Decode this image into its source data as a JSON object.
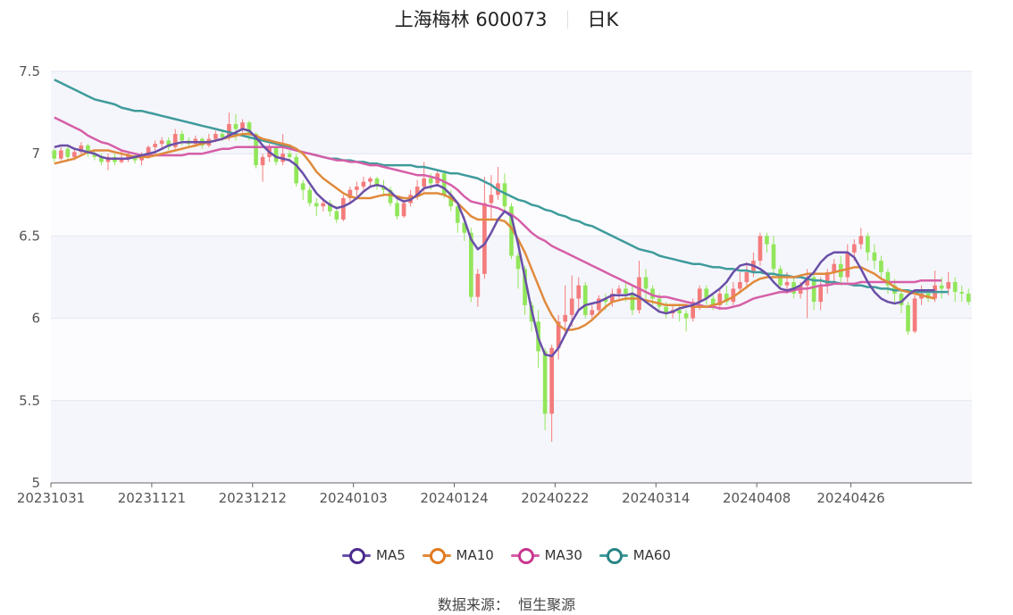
{
  "title": {
    "name": "上海梅林 600073",
    "period": "日K"
  },
  "source": {
    "label": "数据来源：",
    "value": "恒生聚源"
  },
  "colors": {
    "up": "#f47c7c",
    "down": "#91e65a",
    "MA5": "#6a4fa8",
    "MA10": "#e08a3c",
    "MA30": "#d65fa8",
    "MA60": "#3f9b9b"
  },
  "chart_data": {
    "type": "candlestick",
    "ylim": [
      5,
      7.5
    ],
    "y_ticks": [
      "5",
      "5.5",
      "6",
      "6.5",
      "7",
      "7.5"
    ],
    "x_ticks": [
      "20231031",
      "20231121",
      "20231212",
      "20240103",
      "20240124",
      "20240222",
      "20240314",
      "20240408",
      "20240426"
    ],
    "x_tick_positions": [
      0,
      15,
      30,
      45,
      60,
      75,
      90,
      105,
      119
    ],
    "grid": true,
    "legend": {
      "position": "bottom",
      "entries": [
        "MA5",
        "MA10",
        "MA30",
        "MA60"
      ]
    },
    "candles": [
      [
        7.02,
        6.97,
        6.95,
        7.03
      ],
      [
        6.97,
        7.02,
        6.96,
        7.04
      ],
      [
        7.03,
        6.98,
        6.96,
        7.05
      ],
      [
        6.98,
        7.01,
        6.96,
        7.03
      ],
      [
        7.01,
        7.05,
        7.0,
        7.07
      ],
      [
        7.05,
        7.0,
        6.98,
        7.06
      ],
      [
        7.0,
        6.98,
        6.96,
        7.02
      ],
      [
        6.98,
        6.95,
        6.93,
        7.0
      ],
      [
        6.95,
        6.98,
        6.9,
        7.0
      ],
      [
        6.98,
        6.95,
        6.93,
        7.0
      ],
      [
        6.95,
        6.97,
        6.94,
        7.02
      ],
      [
        6.97,
        6.99,
        6.95,
        7.01
      ],
      [
        6.99,
        6.96,
        6.94,
        7.0
      ],
      [
        6.96,
        6.99,
        6.93,
        7.01
      ],
      [
        6.99,
        7.04,
        6.97,
        7.05
      ],
      [
        7.04,
        7.06,
        7.0,
        7.08
      ],
      [
        7.06,
        7.08,
        7.03,
        7.1
      ],
      [
        7.08,
        7.04,
        7.02,
        7.1
      ],
      [
        7.04,
        7.12,
        7.03,
        7.15
      ],
      [
        7.12,
        7.08,
        7.05,
        7.14
      ],
      [
        7.08,
        7.06,
        7.04,
        7.1
      ],
      [
        7.06,
        7.09,
        7.04,
        7.11
      ],
      [
        7.09,
        7.05,
        7.03,
        7.1
      ],
      [
        7.05,
        7.09,
        7.04,
        7.12
      ],
      [
        7.09,
        7.12,
        7.07,
        7.14
      ],
      [
        7.12,
        7.1,
        7.08,
        7.15
      ],
      [
        7.1,
        7.18,
        7.08,
        7.25
      ],
      [
        7.18,
        7.15,
        7.08,
        7.24
      ],
      [
        7.15,
        7.19,
        7.13,
        7.21
      ],
      [
        7.19,
        7.12,
        7.08,
        7.2
      ],
      [
        7.12,
        6.93,
        6.91,
        7.13
      ],
      [
        6.93,
        6.98,
        6.83,
        7.0
      ],
      [
        6.98,
        7.04,
        6.95,
        7.06
      ],
      [
        7.04,
        6.95,
        6.93,
        7.05
      ],
      [
        6.95,
        7.0,
        6.93,
        7.12
      ],
      [
        7.0,
        6.98,
        6.96,
        7.02
      ],
      [
        6.98,
        6.82,
        6.8,
        7.0
      ],
      [
        6.82,
        6.78,
        6.72,
        6.84
      ],
      [
        6.78,
        6.7,
        6.68,
        6.8
      ],
      [
        6.7,
        6.68,
        6.62,
        6.73
      ],
      [
        6.68,
        6.7,
        6.65,
        6.73
      ],
      [
        6.7,
        6.65,
        6.62,
        6.72
      ],
      [
        6.65,
        6.6,
        6.58,
        6.68
      ],
      [
        6.6,
        6.73,
        6.59,
        6.75
      ],
      [
        6.73,
        6.78,
        6.7,
        6.8
      ],
      [
        6.78,
        6.8,
        6.74,
        6.83
      ],
      [
        6.8,
        6.83,
        6.78,
        6.86
      ],
      [
        6.83,
        6.85,
        6.8,
        6.86
      ],
      [
        6.85,
        6.8,
        6.78,
        6.86
      ],
      [
        6.8,
        6.78,
        6.74,
        6.84
      ],
      [
        6.78,
        6.7,
        6.68,
        6.8
      ],
      [
        6.7,
        6.62,
        6.6,
        6.72
      ],
      [
        6.62,
        6.7,
        6.61,
        6.72
      ],
      [
        6.7,
        6.75,
        6.68,
        6.78
      ],
      [
        6.75,
        6.8,
        6.72,
        6.84
      ],
      [
        6.8,
        6.85,
        6.77,
        6.95
      ],
      [
        6.85,
        6.82,
        6.78,
        6.88
      ],
      [
        6.82,
        6.88,
        6.8,
        6.9
      ],
      [
        6.88,
        6.75,
        6.73,
        6.9
      ],
      [
        6.75,
        6.68,
        6.65,
        6.78
      ],
      [
        6.68,
        6.58,
        6.52,
        6.7
      ],
      [
        6.58,
        6.52,
        6.47,
        6.62
      ],
      [
        6.52,
        6.13,
        6.1,
        6.55
      ],
      [
        6.13,
        6.27,
        6.07,
        6.3
      ],
      [
        6.27,
        6.7,
        6.24,
        6.86
      ],
      [
        6.7,
        6.75,
        6.6,
        6.87
      ],
      [
        6.75,
        6.82,
        6.72,
        6.92
      ],
      [
        6.82,
        6.68,
        6.65,
        6.88
      ],
      [
        6.68,
        6.38,
        6.36,
        6.7
      ],
      [
        6.38,
        6.3,
        6.18,
        6.4
      ],
      [
        6.3,
        6.08,
        6.02,
        6.32
      ],
      [
        6.08,
        5.98,
        5.92,
        6.1
      ],
      [
        5.98,
        5.8,
        5.7,
        6.05
      ],
      [
        5.8,
        5.42,
        5.32,
        5.82
      ],
      [
        5.42,
        5.82,
        5.25,
        5.84
      ],
      [
        5.82,
        5.98,
        5.75,
        6.02
      ],
      [
        5.98,
        6.02,
        5.9,
        6.2
      ],
      [
        6.02,
        6.12,
        5.95,
        6.26
      ],
      [
        6.12,
        6.2,
        6.05,
        6.25
      ],
      [
        6.2,
        6.02,
        6.0,
        6.22
      ],
      [
        6.02,
        6.05,
        6.0,
        6.08
      ],
      [
        6.05,
        6.12,
        6.03,
        6.14
      ],
      [
        6.12,
        6.1,
        6.05,
        6.15
      ],
      [
        6.1,
        6.15,
        6.07,
        6.18
      ],
      [
        6.15,
        6.18,
        6.12,
        6.2
      ],
      [
        6.18,
        6.15,
        6.1,
        6.22
      ],
      [
        6.15,
        6.05,
        6.02,
        6.2
      ],
      [
        6.05,
        6.25,
        6.03,
        6.35
      ],
      [
        6.25,
        6.18,
        6.12,
        6.3
      ],
      [
        6.18,
        6.12,
        6.08,
        6.2
      ],
      [
        6.12,
        6.07,
        6.05,
        6.15
      ],
      [
        6.07,
        6.03,
        6.0,
        6.1
      ],
      [
        6.03,
        6.05,
        6.0,
        6.08
      ],
      [
        6.05,
        6.03,
        5.98,
        6.08
      ],
      [
        6.03,
        6.0,
        5.92,
        6.05
      ],
      [
        6.0,
        6.1,
        5.98,
        6.12
      ],
      [
        6.1,
        6.18,
        6.05,
        6.2
      ],
      [
        6.18,
        6.12,
        6.08,
        6.2
      ],
      [
        6.12,
        6.08,
        6.05,
        6.14
      ],
      [
        6.08,
        6.15,
        6.05,
        6.18
      ],
      [
        6.15,
        6.1,
        6.08,
        6.2
      ],
      [
        6.1,
        6.18,
        6.08,
        6.22
      ],
      [
        6.18,
        6.22,
        6.15,
        6.28
      ],
      [
        6.22,
        6.28,
        6.18,
        6.34
      ],
      [
        6.28,
        6.35,
        6.25,
        6.4
      ],
      [
        6.35,
        6.5,
        6.32,
        6.52
      ],
      [
        6.5,
        6.45,
        6.4,
        6.52
      ],
      [
        6.45,
        6.3,
        6.25,
        6.5
      ],
      [
        6.3,
        6.2,
        6.18,
        6.32
      ],
      [
        6.2,
        6.22,
        6.15,
        6.28
      ],
      [
        6.22,
        6.15,
        6.12,
        6.25
      ],
      [
        6.15,
        6.2,
        6.12,
        6.22
      ],
      [
        6.2,
        6.25,
        6.0,
        6.3
      ],
      [
        6.25,
        6.1,
        6.05,
        6.28
      ],
      [
        6.1,
        6.2,
        6.05,
        6.25
      ],
      [
        6.2,
        6.28,
        6.15,
        6.3
      ],
      [
        6.28,
        6.33,
        6.22,
        6.36
      ],
      [
        6.33,
        6.25,
        6.2,
        6.38
      ],
      [
        6.25,
        6.4,
        6.22,
        6.45
      ],
      [
        6.4,
        6.45,
        6.35,
        6.48
      ],
      [
        6.45,
        6.5,
        6.42,
        6.55
      ],
      [
        6.5,
        6.4,
        6.35,
        6.52
      ],
      [
        6.4,
        6.35,
        6.3,
        6.45
      ],
      [
        6.35,
        6.28,
        6.25,
        6.38
      ],
      [
        6.28,
        6.2,
        6.15,
        6.3
      ],
      [
        6.2,
        6.15,
        6.1,
        6.24
      ],
      [
        6.15,
        6.08,
        6.03,
        6.18
      ],
      [
        6.08,
        5.92,
        5.9,
        6.1
      ],
      [
        5.92,
        6.12,
        5.91,
        6.14
      ],
      [
        6.12,
        6.15,
        6.08,
        6.2
      ],
      [
        6.15,
        6.12,
        6.1,
        6.18
      ],
      [
        6.12,
        6.2,
        6.1,
        6.29
      ],
      [
        6.2,
        6.18,
        6.12,
        6.25
      ],
      [
        6.18,
        6.22,
        6.14,
        6.28
      ],
      [
        6.22,
        6.16,
        6.1,
        6.25
      ],
      [
        6.16,
        6.15,
        6.1,
        6.2
      ],
      [
        6.15,
        6.1,
        6.08,
        6.18
      ]
    ],
    "ma": {
      "MA5": [
        7.04,
        7.05,
        7.05,
        7.03,
        7.02,
        7.01,
        7.0,
        6.98,
        6.97,
        6.97,
        6.97,
        6.97,
        6.98,
        6.99,
        7.0,
        7.01,
        7.03,
        7.05,
        7.06,
        7.07,
        7.07,
        7.07,
        7.07,
        7.07,
        7.08,
        7.09,
        7.11,
        7.13,
        7.15,
        7.14,
        7.1,
        7.05,
        7.01,
        6.98,
        6.97,
        6.96,
        6.93,
        6.88,
        6.82,
        6.76,
        6.72,
        6.69,
        6.67,
        6.68,
        6.7,
        6.73,
        6.77,
        6.8,
        6.81,
        6.8,
        6.77,
        6.73,
        6.71,
        6.72,
        6.75,
        6.79,
        6.8,
        6.81,
        6.79,
        6.75,
        6.7,
        6.6,
        6.48,
        6.42,
        6.45,
        6.52,
        6.6,
        6.65,
        6.62,
        6.45,
        6.25,
        6.05,
        5.88,
        5.78,
        5.77,
        5.82,
        5.9,
        5.98,
        6.05,
        6.08,
        6.09,
        6.1,
        6.12,
        6.14,
        6.14,
        6.14,
        6.15,
        6.13,
        6.1,
        6.07,
        6.04,
        6.03,
        6.04,
        6.06,
        6.07,
        6.08,
        6.1,
        6.12,
        6.15,
        6.18,
        6.22,
        6.28,
        6.32,
        6.33,
        6.32,
        6.3,
        6.27,
        6.22,
        6.18,
        6.17,
        6.18,
        6.2,
        6.24,
        6.28,
        6.34,
        6.38,
        6.4,
        6.4,
        6.4,
        6.37,
        6.3,
        6.22,
        6.16,
        6.12,
        6.1,
        6.09,
        6.1,
        6.14,
        6.17,
        6.17,
        6.17,
        6.17
      ],
      "MA10": [
        6.94,
        6.95,
        6.96,
        6.97,
        6.99,
        7.01,
        7.02,
        7.02,
        7.02,
        7.01,
        7.0,
        6.99,
        6.98,
        6.98,
        6.98,
        6.99,
        7.0,
        7.01,
        7.02,
        7.03,
        7.04,
        7.05,
        7.06,
        7.07,
        7.08,
        7.09,
        7.1,
        7.11,
        7.12,
        7.12,
        7.11,
        7.09,
        7.08,
        7.07,
        7.06,
        7.05,
        7.03,
        7.0,
        6.95,
        6.89,
        6.85,
        6.82,
        6.79,
        6.76,
        6.74,
        6.73,
        6.73,
        6.73,
        6.74,
        6.75,
        6.75,
        6.74,
        6.73,
        6.73,
        6.74,
        6.76,
        6.76,
        6.76,
        6.75,
        6.73,
        6.7,
        6.66,
        6.62,
        6.6,
        6.6,
        6.6,
        6.6,
        6.59,
        6.55,
        6.48,
        6.4,
        6.3,
        6.2,
        6.1,
        6.02,
        5.96,
        5.93,
        5.93,
        5.94,
        5.96,
        5.99,
        6.03,
        6.07,
        6.1,
        6.11,
        6.12,
        6.12,
        6.12,
        6.11,
        6.1,
        6.09,
        6.08,
        6.08,
        6.08,
        6.08,
        6.07,
        6.07,
        6.07,
        6.08,
        6.09,
        6.11,
        6.13,
        6.16,
        6.19,
        6.22,
        6.24,
        6.25,
        6.25,
        6.25,
        6.25,
        6.25,
        6.26,
        6.27,
        6.27,
        6.27,
        6.27,
        6.28,
        6.29,
        6.3,
        6.31,
        6.31,
        6.29,
        6.27,
        6.24,
        6.22,
        6.19,
        6.17,
        6.16,
        6.15,
        6.14,
        6.13,
        6.12
      ],
      "MA30": [
        7.22,
        7.2,
        7.18,
        7.16,
        7.14,
        7.11,
        7.09,
        7.07,
        7.06,
        7.04,
        7.02,
        7.01,
        7.0,
        6.99,
        6.99,
        6.99,
        6.99,
        6.99,
        6.99,
        6.99,
        7.0,
        7.0,
        7.0,
        7.01,
        7.02,
        7.03,
        7.03,
        7.04,
        7.04,
        7.04,
        7.04,
        7.04,
        7.04,
        7.04,
        7.04,
        7.03,
        7.02,
        7.01,
        7.0,
        6.99,
        6.98,
        6.97,
        6.96,
        6.96,
        6.95,
        6.95,
        6.94,
        6.93,
        6.93,
        6.92,
        6.91,
        6.9,
        6.89,
        6.88,
        6.87,
        6.87,
        6.86,
        6.85,
        6.83,
        6.81,
        6.78,
        6.74,
        6.71,
        6.7,
        6.69,
        6.68,
        6.67,
        6.65,
        6.63,
        6.6,
        6.56,
        6.52,
        6.49,
        6.47,
        6.44,
        6.42,
        6.4,
        6.38,
        6.36,
        6.34,
        6.32,
        6.3,
        6.28,
        6.26,
        6.24,
        6.22,
        6.2,
        6.18,
        6.16,
        6.14,
        6.13,
        6.13,
        6.12,
        6.11,
        6.1,
        6.09,
        6.08,
        6.07,
        6.07,
        6.06,
        6.06,
        6.07,
        6.08,
        6.1,
        6.12,
        6.13,
        6.14,
        6.15,
        6.16,
        6.16,
        6.17,
        6.18,
        6.18,
        6.19,
        6.2,
        6.2,
        6.21,
        6.21,
        6.21,
        6.21,
        6.22,
        6.22,
        6.22,
        6.22,
        6.22,
        6.22,
        6.22,
        6.22,
        6.22,
        6.23,
        6.23,
        6.23,
        6.23
      ],
      "MA60": [
        7.45,
        7.43,
        7.41,
        7.39,
        7.37,
        7.35,
        7.33,
        7.32,
        7.31,
        7.3,
        7.28,
        7.27,
        7.26,
        7.26,
        7.25,
        7.24,
        7.23,
        7.22,
        7.21,
        7.2,
        7.19,
        7.18,
        7.17,
        7.16,
        7.15,
        7.14,
        7.13,
        7.12,
        7.11,
        7.1,
        7.09,
        7.08,
        7.07,
        7.06,
        7.05,
        7.04,
        7.02,
        7.01,
        7.0,
        6.99,
        6.98,
        6.97,
        6.97,
        6.96,
        6.96,
        6.95,
        6.95,
        6.94,
        6.94,
        6.93,
        6.93,
        6.93,
        6.93,
        6.93,
        6.92,
        6.92,
        6.91,
        6.9,
        6.89,
        6.88,
        6.88,
        6.87,
        6.86,
        6.85,
        6.83,
        6.81,
        6.78,
        6.76,
        6.74,
        6.72,
        6.71,
        6.69,
        6.68,
        6.66,
        6.65,
        6.63,
        6.62,
        6.6,
        6.59,
        6.57,
        6.56,
        6.54,
        6.52,
        6.5,
        6.48,
        6.46,
        6.44,
        6.42,
        6.41,
        6.4,
        6.38,
        6.37,
        6.36,
        6.35,
        6.34,
        6.33,
        6.33,
        6.32,
        6.31,
        6.31,
        6.3,
        6.3,
        6.29,
        6.29,
        6.28,
        6.28,
        6.27,
        6.27,
        6.26,
        6.26,
        6.25,
        6.25,
        6.24,
        6.23,
        6.23,
        6.22,
        6.22,
        6.21,
        6.21,
        6.2,
        6.2,
        6.19,
        6.19,
        6.18,
        6.18,
        6.17,
        6.17,
        6.17,
        6.16,
        6.16,
        6.16,
        6.16,
        6.16,
        6.16
      ]
    }
  }
}
